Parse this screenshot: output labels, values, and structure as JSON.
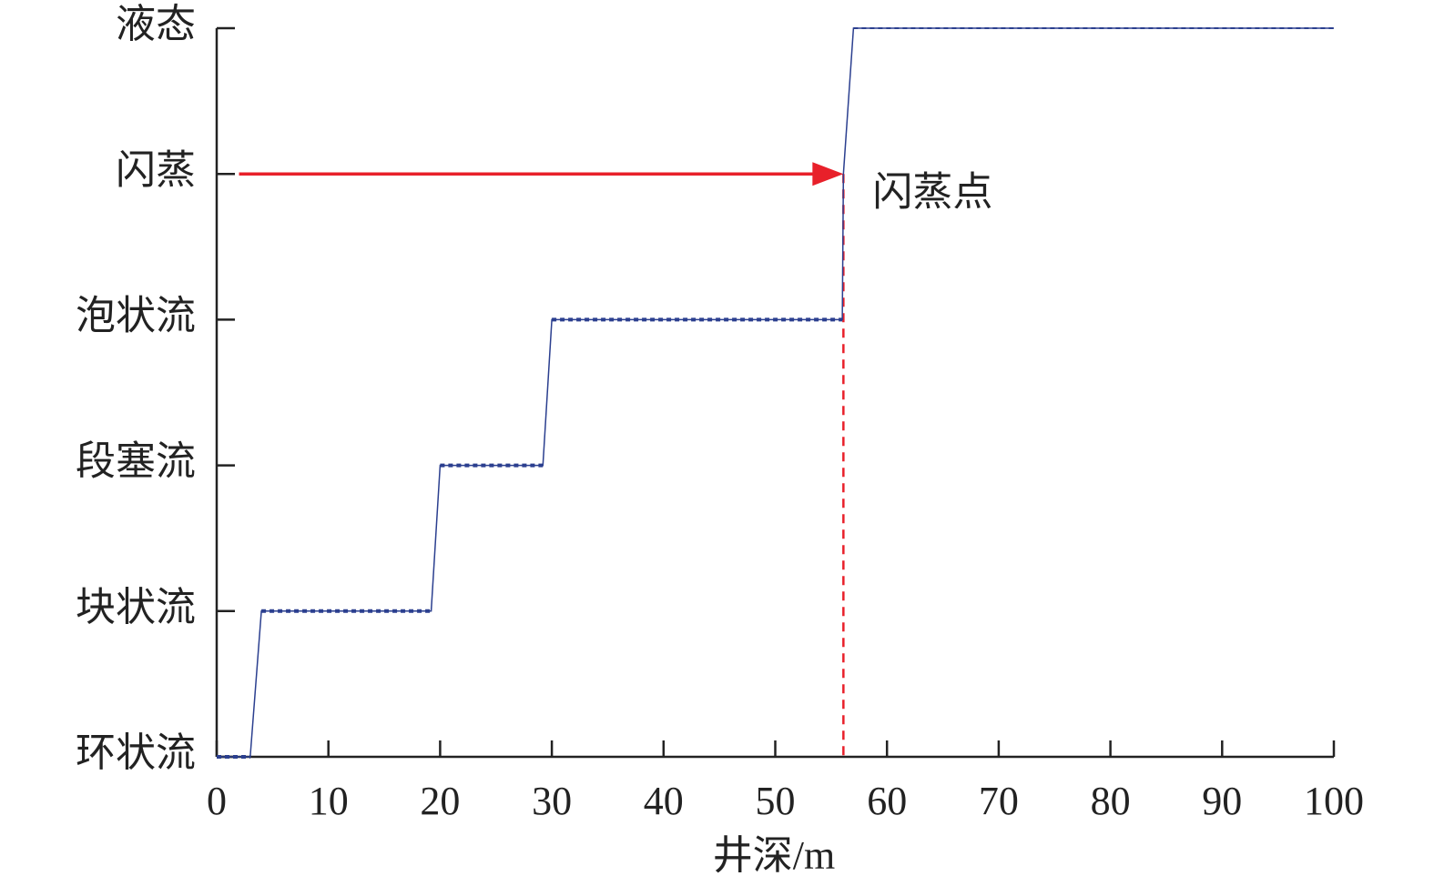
{
  "chart_data": {
    "type": "step-line",
    "x_label": "井深/m",
    "xlim": [
      0,
      100
    ],
    "xticks": [
      0,
      10,
      20,
      30,
      40,
      50,
      60,
      70,
      80,
      90,
      100
    ],
    "ylim": [
      0,
      5
    ],
    "yticks": [
      {
        "value": 0,
        "label": "环状流"
      },
      {
        "value": 1,
        "label": "块状流"
      },
      {
        "value": 2,
        "label": "段塞流"
      },
      {
        "value": 3,
        "label": "泡状流"
      },
      {
        "value": 4,
        "label": "闪蒸"
      },
      {
        "value": 5,
        "label": "液态"
      }
    ],
    "series": [
      {
        "color": "#2b3f8f",
        "x": [
          0,
          3,
          4,
          19.2,
          20,
          29.2,
          30,
          56,
          56.1,
          57,
          100
        ],
        "values": [
          0,
          0,
          1,
          1,
          2,
          2,
          3,
          3,
          4,
          5,
          5
        ]
      }
    ],
    "flash_point": {
      "label": "闪蒸点",
      "x": 56.1,
      "y": 4,
      "arrow_start": 2,
      "color": "#e8202a"
    }
  }
}
